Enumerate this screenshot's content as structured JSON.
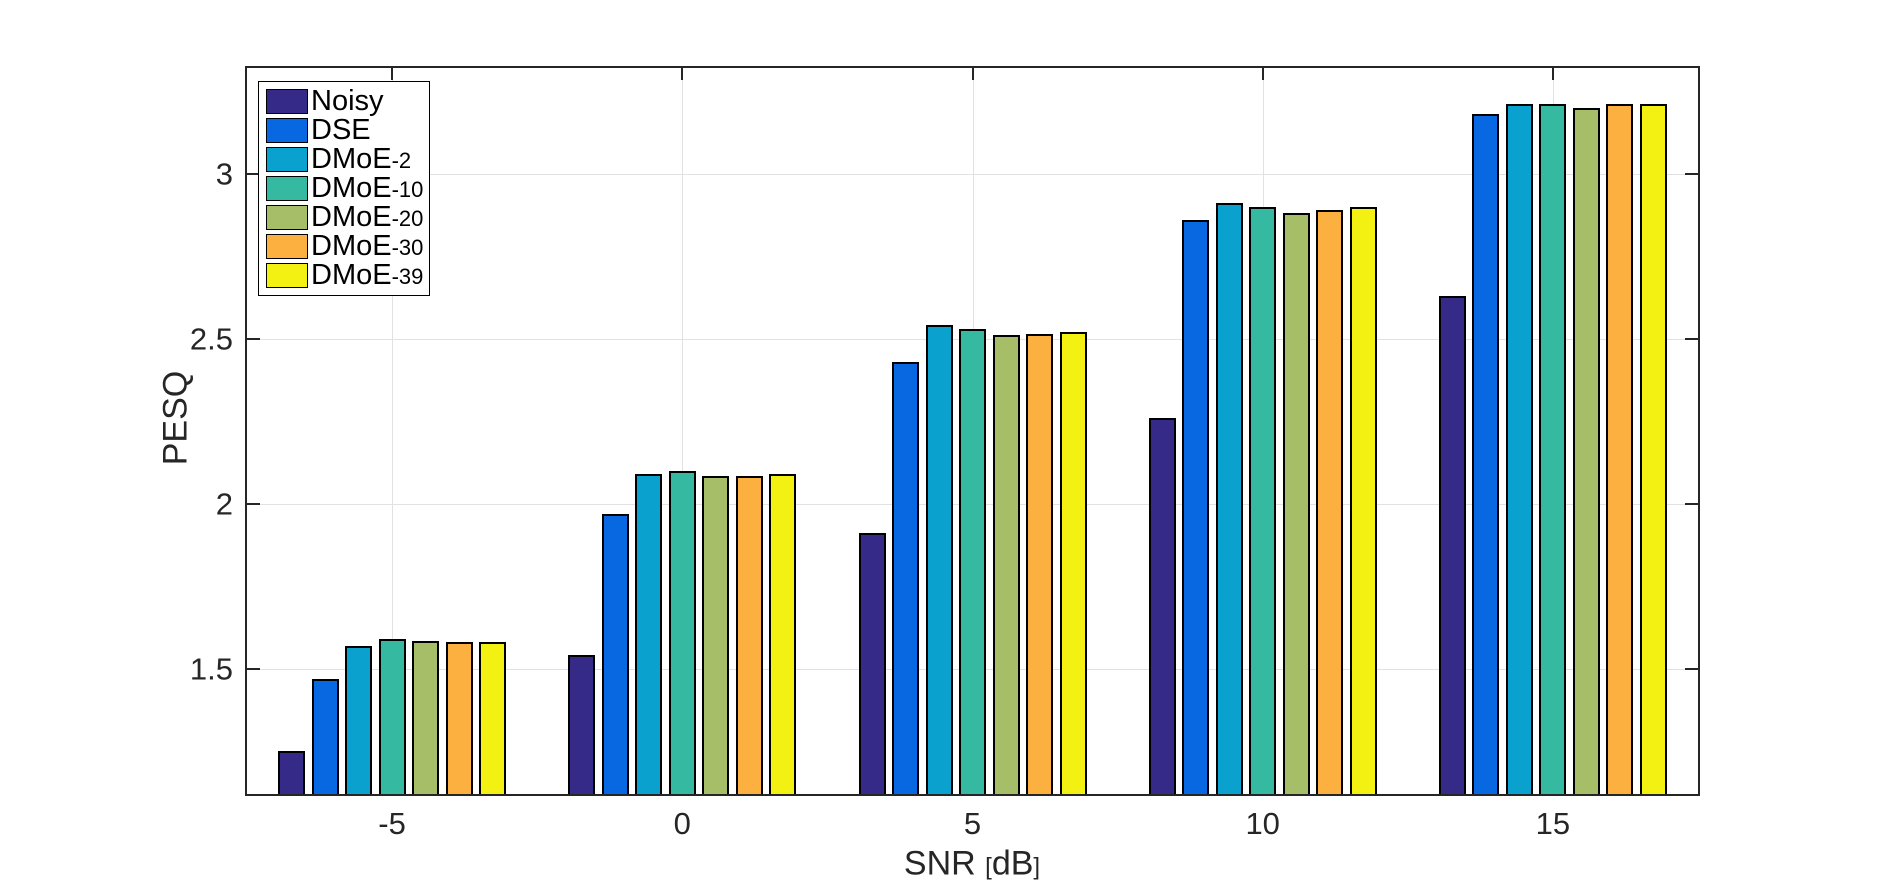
{
  "chart_data": {
    "type": "bar",
    "title": "",
    "xlabel": "SNR [dB]",
    "ylabel": "PESQ",
    "categories": [
      "-5",
      "0",
      "5",
      "10",
      "15"
    ],
    "series": [
      {
        "name": "Noisy",
        "color": "#352A87",
        "values": [
          1.25,
          1.54,
          1.91,
          2.26,
          2.63
        ]
      },
      {
        "name": "DSE",
        "color": "#0768E1",
        "values": [
          1.47,
          1.97,
          2.43,
          2.86,
          3.18
        ]
      },
      {
        "name": "DMoE-2",
        "color": "#0AA1CE",
        "values": [
          1.57,
          2.09,
          2.54,
          2.91,
          3.21
        ]
      },
      {
        "name": "DMoE-10",
        "color": "#35B9A0",
        "values": [
          1.59,
          2.1,
          2.53,
          2.9,
          3.21
        ]
      },
      {
        "name": "DMoE-20",
        "color": "#A6BE68",
        "values": [
          1.585,
          2.085,
          2.51,
          2.88,
          3.2
        ]
      },
      {
        "name": "DMoE-30",
        "color": "#FBB040",
        "values": [
          1.58,
          2.085,
          2.515,
          2.89,
          3.21
        ]
      },
      {
        "name": "DMoE-39",
        "color": "#F2F111",
        "values": [
          1.58,
          2.09,
          2.52,
          2.9,
          3.21
        ]
      }
    ],
    "ylim": [
      1.12,
      3.32
    ],
    "yticks": [
      "1.5",
      "2",
      "2.5",
      "3"
    ],
    "grid": true,
    "legend_position": "top-left",
    "axis_color": "#262626",
    "grid_color": "#E2E2E2",
    "bar_edge_color": "#000000",
    "background_color": "#FFFFFF"
  }
}
